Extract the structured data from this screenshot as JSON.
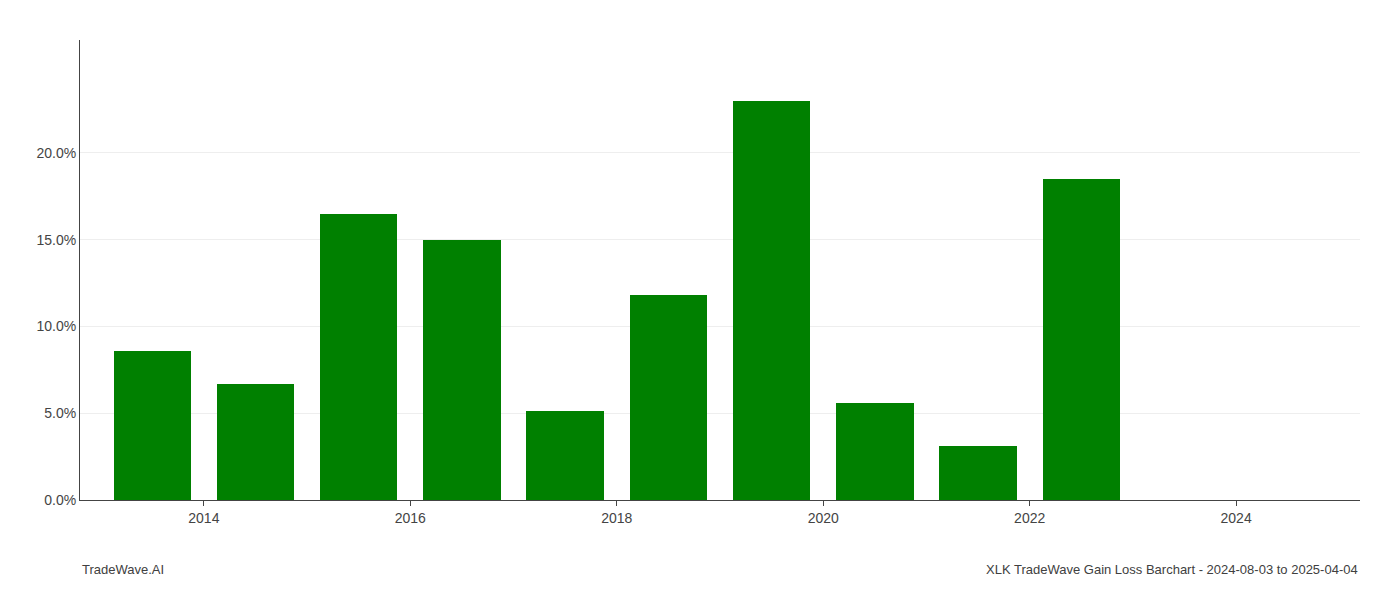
{
  "chart_data": {
    "type": "bar",
    "x": [
      2013.5,
      2014.5,
      2015.5,
      2016.5,
      2017.5,
      2018.5,
      2019.5,
      2020.5,
      2021.5,
      2022.5
    ],
    "values": [
      0.086,
      0.067,
      0.165,
      0.15,
      0.051,
      0.118,
      0.23,
      0.056,
      0.031,
      0.185
    ],
    "color": "#008000",
    "xlim": [
      2012.8,
      2025.2
    ],
    "xticks": [
      2014,
      2016,
      2018,
      2020,
      2022,
      2024
    ],
    "ylim": [
      0,
      0.265
    ],
    "yticks": [
      {
        "value": 0.0,
        "label": "0.0%"
      },
      {
        "value": 0.05,
        "label": "5.0%"
      },
      {
        "value": 0.1,
        "label": "10.0%"
      },
      {
        "value": 0.15,
        "label": "15.0%"
      },
      {
        "value": 0.2,
        "label": "20.0%"
      }
    ],
    "grid": true,
    "annotations": [
      "TradeWave.AI",
      "XLK TradeWave Gain Loss Barchart - 2024-08-03 to 2025-04-04"
    ]
  }
}
